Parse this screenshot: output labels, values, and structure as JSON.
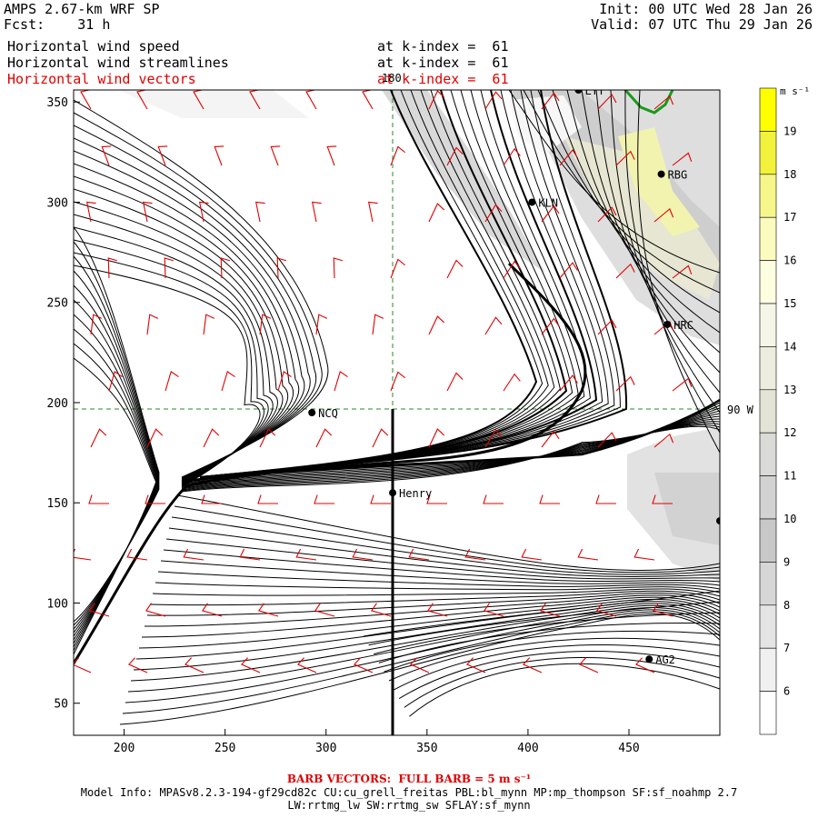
{
  "header": {
    "model": "AMPS 2.67-km WRF SP",
    "fcst_label": "Fcst:",
    "fcst_value": "31 h",
    "init": "Init: 00 UTC Wed 28 Jan 26",
    "valid": "Valid: 07 UTC Thu 29 Jan 26",
    "fields": [
      {
        "name": "Horizontal wind speed",
        "level": "at k-index =  61",
        "color": "#000000"
      },
      {
        "name": "Horizontal wind streamlines",
        "level": "at k-index =  61",
        "color": "#000000"
      },
      {
        "name": "Horizontal wind vectors",
        "level": "at k-index =  61",
        "color": "#e00000"
      }
    ]
  },
  "map": {
    "x_ticks": [
      "200",
      "250",
      "300",
      "350",
      "400",
      "450"
    ],
    "y_ticks": [
      "350",
      "300",
      "250",
      "200",
      "150",
      "100",
      "50"
    ],
    "meridian_label": "180",
    "parallel_label": "90 W",
    "stations": [
      {
        "code": "LYT",
        "x": 425,
        "y": 356
      },
      {
        "code": "RBG",
        "x": 466,
        "y": 314
      },
      {
        "code": "KLN",
        "x": 402,
        "y": 300
      },
      {
        "code": "HRC",
        "x": 469,
        "y": 239
      },
      {
        "code": "NCQ",
        "x": 293,
        "y": 195
      },
      {
        "code": "Henry",
        "x": 333,
        "y": 155
      },
      {
        "code": "AG2",
        "x": 460,
        "y": 72
      },
      {
        "code": "",
        "x": 495,
        "y": 141
      }
    ],
    "colors": {
      "streamline": "#000000",
      "barb": "#e00000",
      "grid": "#2a8a2a",
      "coast": "#1a8a1a"
    }
  },
  "colorbar": {
    "unit": "m s⁻¹",
    "levels": [
      {
        "label": "19",
        "color": "#ffff00"
      },
      {
        "label": "18",
        "color": "#f2f23c"
      },
      {
        "label": "17",
        "color": "#f6f68a"
      },
      {
        "label": "16",
        "color": "#fbfbc0"
      },
      {
        "label": "15",
        "color": "#fdfde0"
      },
      {
        "label": "14",
        "color": "#f5f5e8"
      },
      {
        "label": "13",
        "color": "#ededdf"
      },
      {
        "label": "12",
        "color": "#e4e4d6"
      },
      {
        "label": "11",
        "color": "#dadad6"
      },
      {
        "label": "10",
        "color": "#d2d2d2"
      },
      {
        "label": "9",
        "color": "#c8c8c8"
      },
      {
        "label": "8",
        "color": "#d6d6d6"
      },
      {
        "label": "7",
        "color": "#e4e4e4"
      },
      {
        "label": "6",
        "color": "#f0f0f0"
      },
      {
        "label": "",
        "color": "#ffffff"
      }
    ]
  },
  "footer": {
    "barb_note": "BARB VECTORS:  FULL BARB = 5 m s⁻¹",
    "model_info": "Model Info: MPASv8.2.3-194-gf29cd82c CU:cu_grell_freitas PBL:bl_mynn MP:mp_thompson SF:sf_noahmp 2.7",
    "model_info2": "LW:rrtmg_lw SW:rrtmg_sw SFLAY:sf_mynn"
  }
}
